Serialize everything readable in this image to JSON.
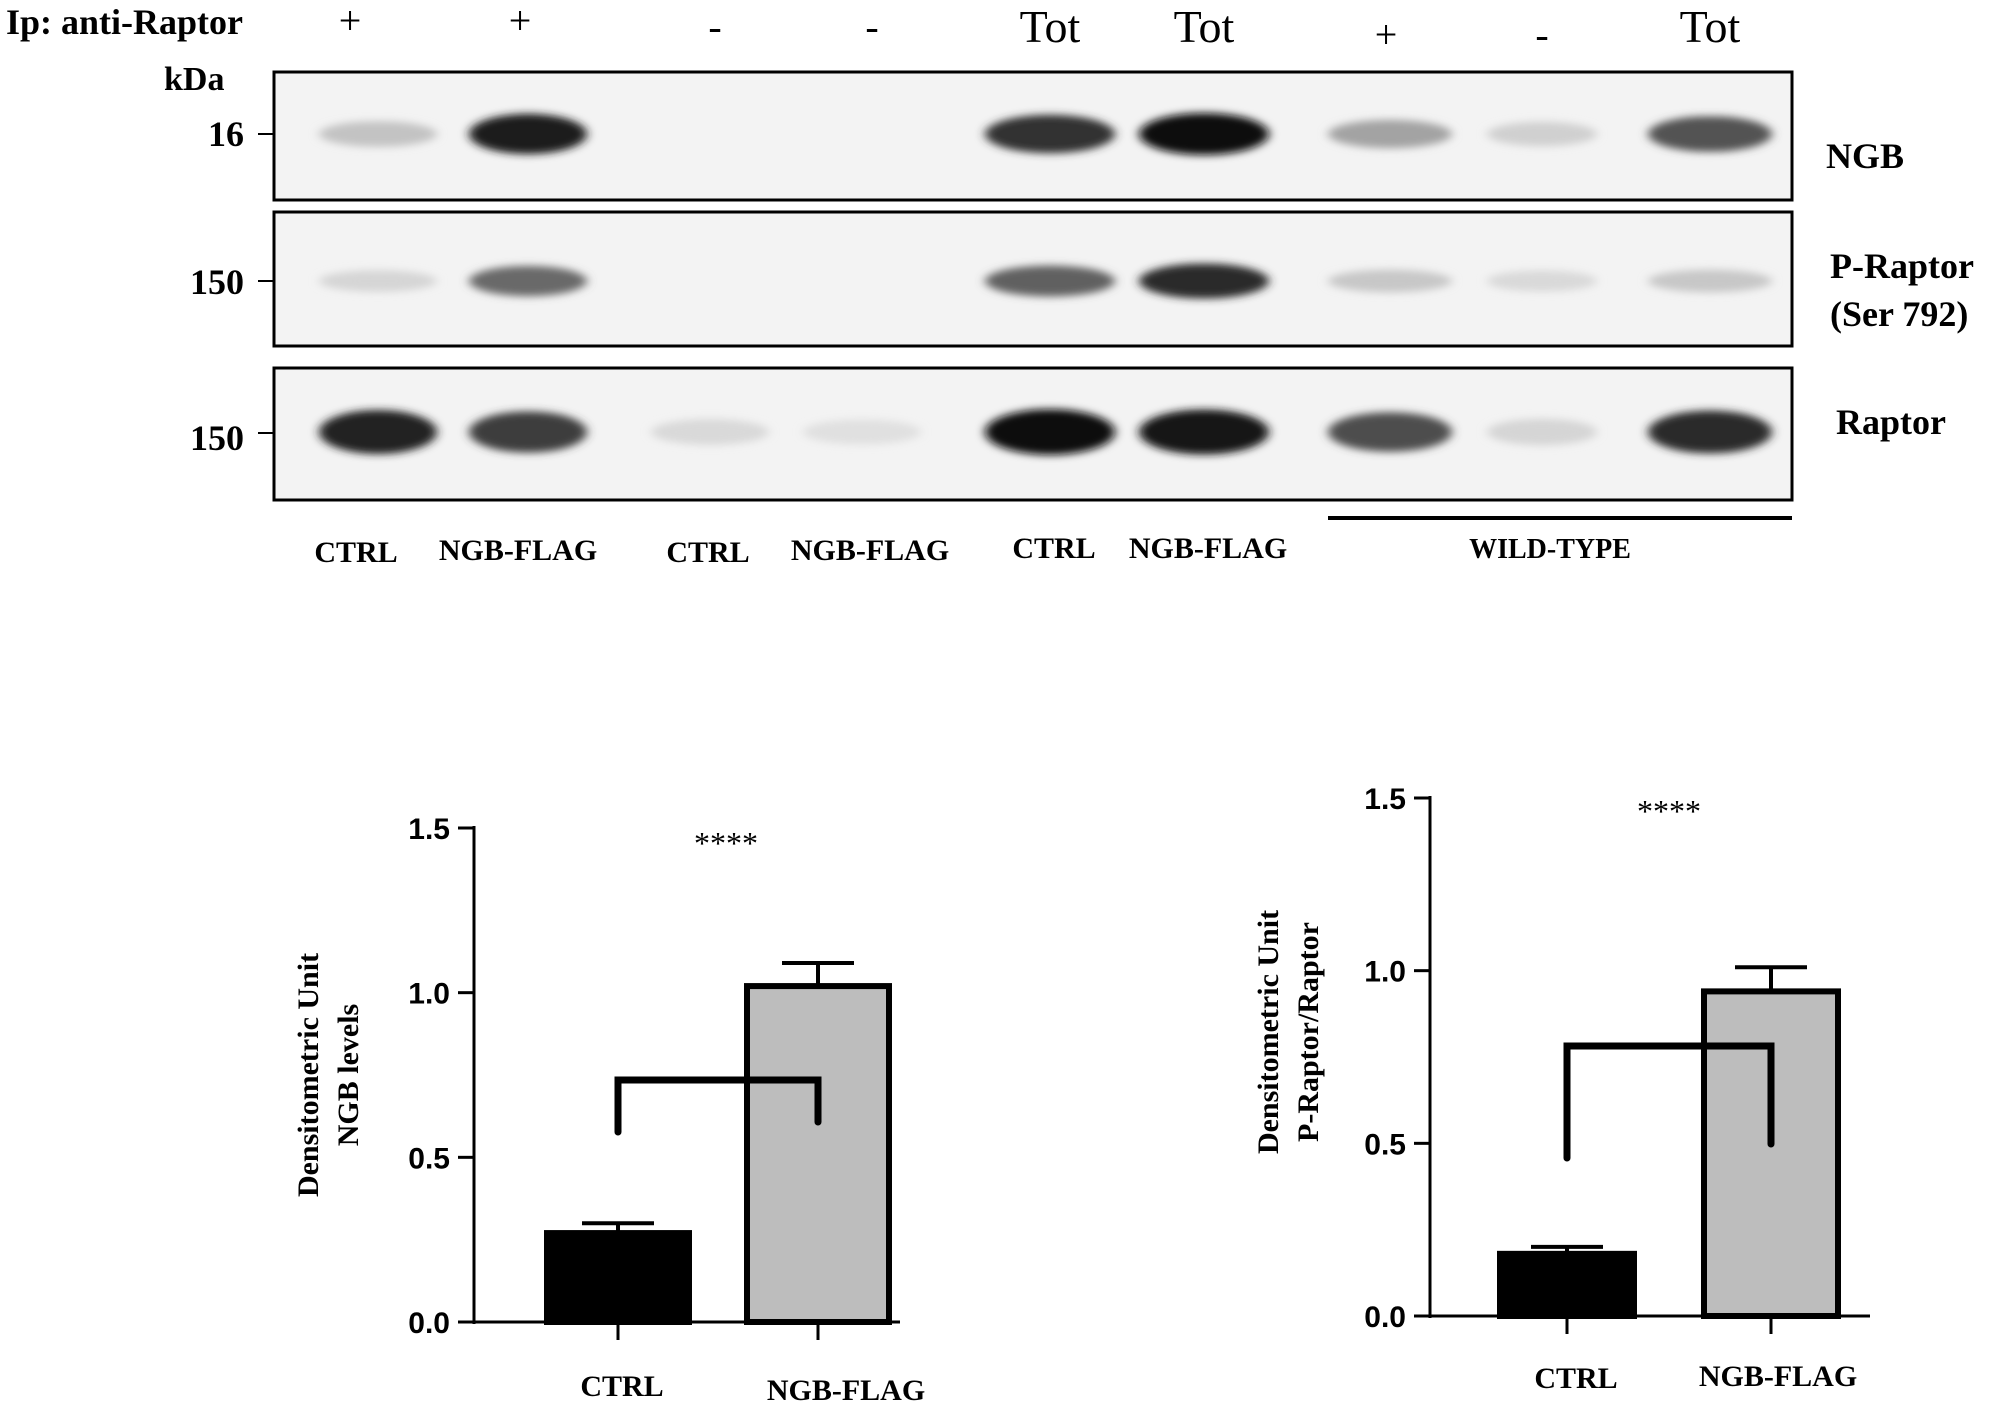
{
  "blot": {
    "ip_label": "Ip: anti-Raptor",
    "kda_label": "kDa",
    "lane_signs": [
      "+",
      "+",
      "-",
      "-",
      "Tot",
      "Tot",
      "+",
      "-",
      "Tot"
    ],
    "panels": [
      {
        "marker": "16",
        "protein": "NGB",
        "protein_line2": "",
        "band_intensity": [
          0.18,
          0.92,
          0.0,
          0.0,
          0.82,
          1.0,
          0.32,
          0.12,
          0.68
        ]
      },
      {
        "marker": "150",
        "protein": "P-Raptor",
        "protein_line2": "(Ser 792)",
        "band_intensity": [
          0.1,
          0.58,
          0.0,
          0.0,
          0.62,
          0.85,
          0.16,
          0.08,
          0.16
        ]
      },
      {
        "marker": "150",
        "protein": "Raptor",
        "protein_line2": "",
        "band_intensity": [
          0.9,
          0.78,
          0.08,
          0.05,
          0.98,
          0.95,
          0.7,
          0.1,
          0.85
        ]
      }
    ],
    "condition_labels": [
      "CTRL",
      "NGB-FLAG",
      "CTRL",
      "NGB-FLAG",
      "CTRL",
      "NGB-FLAG"
    ],
    "group_label": "WILD-TYPE"
  },
  "chart_data": [
    {
      "type": "bar",
      "categories": [
        "CTRL",
        "NGB-FLAG"
      ],
      "values": [
        0.27,
        1.02
      ],
      "errors": [
        0.03,
        0.07
      ],
      "colors": [
        "#000000",
        "#bdbdbd"
      ],
      "ylabel": "Densitometric Unit",
      "ylabel_line2": "NGB levels",
      "ylim": [
        0,
        1.5
      ],
      "yticks": [
        "0.0",
        "0.5",
        "1.0",
        "1.5"
      ],
      "significance": "****"
    },
    {
      "type": "bar",
      "categories": [
        "CTRL",
        "NGB-FLAG"
      ],
      "values": [
        0.18,
        0.94
      ],
      "errors": [
        0.02,
        0.07
      ],
      "colors": [
        "#000000",
        "#bdbdbd"
      ],
      "ylabel": "Densitometric Unit",
      "ylabel_line2": "P-Raptor/Raptor",
      "ylim": [
        0,
        1.5
      ],
      "yticks": [
        "0.0",
        "0.5",
        "1.0",
        "1.5"
      ],
      "significance": "****"
    }
  ]
}
